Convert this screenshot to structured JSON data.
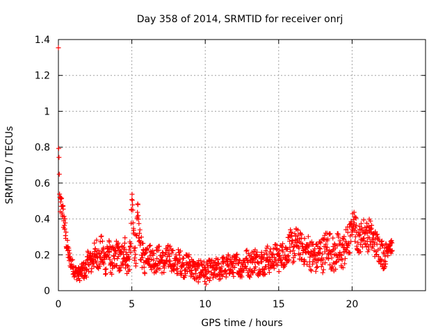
{
  "chart_data": {
    "type": "scatter",
    "title": "Day 358 of 2014, SRMTID for receiver onrj",
    "xlabel": "GPS time / hours",
    "ylabel": "SRMTID / TECUs",
    "xlim": [
      0,
      25
    ],
    "ylim": [
      0,
      1.4
    ],
    "xticks": [
      "0",
      "5",
      "10",
      "15",
      "20"
    ],
    "yticks": [
      "0",
      "0.2",
      "0.4",
      "0.6",
      "0.8",
      "1",
      "1.2",
      "1.4"
    ],
    "grid": true,
    "marker": "+",
    "color": "#ff0000",
    "series": [
      {
        "name": "SRMTID",
        "x": [
          0.0,
          0.02,
          0.04,
          0.06,
          0.08,
          0.1,
          0.12,
          0.15,
          0.2,
          0.25,
          0.3,
          0.35,
          0.4,
          0.45,
          0.5,
          0.55,
          0.6,
          0.65,
          0.7,
          0.75,
          0.8,
          0.9,
          1.0,
          1.1,
          1.2,
          1.3,
          1.4,
          1.5,
          1.6,
          1.7,
          1.8,
          1.9,
          2.0,
          2.1,
          2.2,
          2.3,
          2.4,
          2.5,
          2.6,
          2.7,
          2.8,
          2.9,
          3.0,
          3.1,
          3.2,
          3.3,
          3.4,
          3.5,
          3.6,
          3.7,
          3.8,
          3.9,
          4.0,
          4.1,
          4.2,
          4.3,
          4.4,
          4.5,
          4.6,
          4.7,
          4.8,
          4.9,
          5.0,
          5.05,
          5.1,
          5.15,
          5.2,
          5.3,
          5.4,
          5.5,
          5.6,
          5.7,
          5.8,
          5.9,
          6.0,
          6.2,
          6.4,
          6.6,
          6.8,
          7.0,
          7.2,
          7.4,
          7.6,
          7.8,
          8.0,
          8.2,
          8.4,
          8.6,
          8.8,
          9.0,
          9.2,
          9.4,
          9.6,
          9.8,
          10.0,
          10.2,
          10.4,
          10.6,
          10.8,
          11.0,
          11.2,
          11.4,
          11.6,
          11.8,
          12.0,
          12.2,
          12.4,
          12.6,
          12.8,
          13.0,
          13.2,
          13.4,
          13.6,
          13.8,
          14.0,
          14.2,
          14.4,
          14.6,
          14.8,
          15.0,
          15.2,
          15.4,
          15.6,
          15.8,
          16.0,
          16.2,
          16.4,
          16.6,
          16.8,
          17.0,
          17.2,
          17.4,
          17.6,
          17.8,
          18.0,
          18.2,
          18.4,
          18.6,
          18.8,
          19.0,
          19.2,
          19.4,
          19.6,
          19.8,
          19.9,
          20.0,
          20.1,
          20.2,
          20.3,
          20.4,
          20.6,
          20.8,
          21.0,
          21.1,
          21.2,
          21.3,
          21.4,
          21.6,
          21.8,
          22.0,
          22.1,
          22.2,
          22.3,
          22.4,
          22.5,
          22.6,
          22.7
        ],
        "values": [
          1.23,
          0.91,
          0.69,
          0.55,
          0.52,
          0.5,
          0.48,
          0.47,
          0.49,
          0.46,
          0.44,
          0.4,
          0.38,
          0.35,
          0.3,
          0.27,
          0.24,
          0.22,
          0.2,
          0.18,
          0.17,
          0.15,
          0.13,
          0.11,
          0.1,
          0.1,
          0.09,
          0.1,
          0.11,
          0.12,
          0.1,
          0.13,
          0.16,
          0.18,
          0.15,
          0.17,
          0.2,
          0.18,
          0.22,
          0.19,
          0.17,
          0.24,
          0.2,
          0.18,
          0.15,
          0.21,
          0.23,
          0.19,
          0.16,
          0.18,
          0.14,
          0.2,
          0.22,
          0.18,
          0.15,
          0.19,
          0.21,
          0.26,
          0.17,
          0.15,
          0.18,
          0.2,
          0.51,
          0.48,
          0.32,
          0.28,
          0.25,
          0.22,
          0.45,
          0.3,
          0.24,
          0.2,
          0.18,
          0.16,
          0.22,
          0.2,
          0.18,
          0.16,
          0.19,
          0.17,
          0.15,
          0.18,
          0.2,
          0.16,
          0.14,
          0.17,
          0.15,
          0.13,
          0.16,
          0.14,
          0.12,
          0.1,
          0.11,
          0.13,
          0.09,
          0.11,
          0.12,
          0.1,
          0.13,
          0.11,
          0.14,
          0.12,
          0.15,
          0.13,
          0.14,
          0.16,
          0.12,
          0.15,
          0.17,
          0.14,
          0.16,
          0.18,
          0.15,
          0.17,
          0.14,
          0.19,
          0.16,
          0.18,
          0.2,
          0.17,
          0.21,
          0.19,
          0.23,
          0.26,
          0.22,
          0.28,
          0.25,
          0.24,
          0.21,
          0.23,
          0.2,
          0.19,
          0.18,
          0.22,
          0.2,
          0.24,
          0.26,
          0.21,
          0.19,
          0.23,
          0.2,
          0.22,
          0.25,
          0.28,
          0.3,
          0.36,
          0.4,
          0.35,
          0.32,
          0.28,
          0.3,
          0.33,
          0.31,
          0.29,
          0.34,
          0.3,
          0.28,
          0.26,
          0.24,
          0.22,
          0.2,
          0.18,
          0.21,
          0.23,
          0.26,
          0.25,
          0.24
        ],
        "jitter": [
          0.4,
          0.3,
          0.2,
          0.1,
          0.05,
          0.06,
          0.06,
          0.06,
          0.06,
          0.06,
          0.06,
          0.06,
          0.06,
          0.06,
          0.06,
          0.05,
          0.05,
          0.05,
          0.05,
          0.05,
          0.04,
          0.04,
          0.04,
          0.04,
          0.04,
          0.04,
          0.04,
          0.04,
          0.04,
          0.05,
          0.05,
          0.06,
          0.06,
          0.07,
          0.07,
          0.07,
          0.08,
          0.08,
          0.08,
          0.08,
          0.08,
          0.08,
          0.08,
          0.08,
          0.08,
          0.08,
          0.08,
          0.08,
          0.08,
          0.08,
          0.08,
          0.08,
          0.08,
          0.08,
          0.08,
          0.08,
          0.08,
          0.08,
          0.08,
          0.08,
          0.08,
          0.08,
          0.04,
          0.04,
          0.1,
          0.1,
          0.1,
          0.09,
          0.05,
          0.09,
          0.08,
          0.08,
          0.08,
          0.07,
          0.07,
          0.07,
          0.07,
          0.07,
          0.07,
          0.07,
          0.07,
          0.07,
          0.07,
          0.07,
          0.07,
          0.07,
          0.07,
          0.06,
          0.06,
          0.06,
          0.06,
          0.06,
          0.06,
          0.06,
          0.06,
          0.06,
          0.06,
          0.06,
          0.06,
          0.06,
          0.06,
          0.06,
          0.06,
          0.06,
          0.06,
          0.06,
          0.06,
          0.06,
          0.07,
          0.07,
          0.07,
          0.07,
          0.07,
          0.07,
          0.07,
          0.07,
          0.07,
          0.07,
          0.07,
          0.07,
          0.07,
          0.07,
          0.08,
          0.08,
          0.08,
          0.08,
          0.08,
          0.08,
          0.08,
          0.09,
          0.09,
          0.09,
          0.09,
          0.09,
          0.1,
          0.1,
          0.1,
          0.1,
          0.1,
          0.1,
          0.1,
          0.1,
          0.1,
          0.1,
          0.09,
          0.06,
          0.06,
          0.08,
          0.08,
          0.08,
          0.08,
          0.08,
          0.08,
          0.08,
          0.08,
          0.08,
          0.08,
          0.08,
          0.08,
          0.08,
          0.08,
          0.06,
          0.06,
          0.05,
          0.04,
          0.04,
          0.04
        ]
      }
    ]
  }
}
